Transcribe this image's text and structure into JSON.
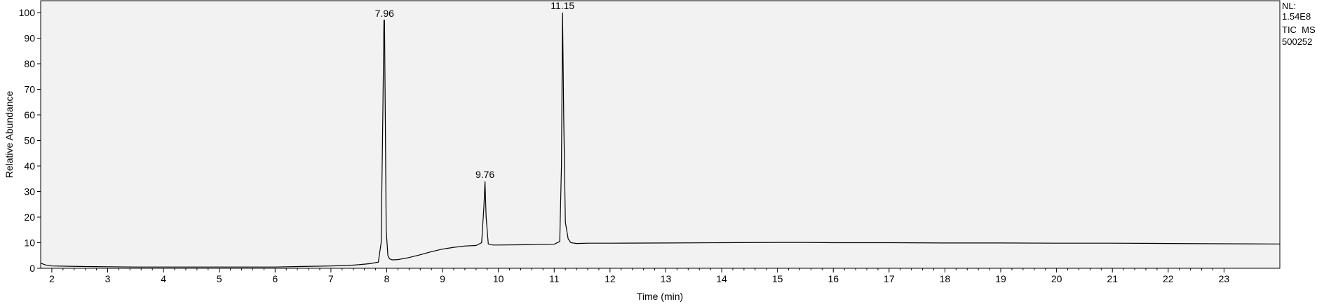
{
  "chart_data": {
    "type": "line",
    "title": "",
    "xlabel": "Time (min)",
    "ylabel": "Relative Abundance",
    "xlim": [
      1.8,
      24.0
    ],
    "ylim": [
      0,
      100
    ],
    "x_ticks": [
      2,
      3,
      4,
      5,
      6,
      7,
      8,
      9,
      10,
      11,
      12,
      13,
      14,
      15,
      16,
      17,
      18,
      19,
      20,
      21,
      22,
      23
    ],
    "y_ticks": [
      0,
      10,
      20,
      30,
      40,
      50,
      60,
      70,
      80,
      90,
      100
    ],
    "series": [
      {
        "name": "TIC",
        "x": [
          1.8,
          1.85,
          1.9,
          2.0,
          2.5,
          3.0,
          3.5,
          4.0,
          4.5,
          5.0,
          5.5,
          6.0,
          6.5,
          7.0,
          7.3,
          7.5,
          7.7,
          7.85,
          7.9,
          7.93,
          7.95,
          7.96,
          7.97,
          7.99,
          8.02,
          8.05,
          8.1,
          8.2,
          8.4,
          8.6,
          8.8,
          9.0,
          9.2,
          9.4,
          9.6,
          9.7,
          9.74,
          9.76,
          9.78,
          9.82,
          9.9,
          10.0,
          10.5,
          11.0,
          11.1,
          11.13,
          11.15,
          11.17,
          11.2,
          11.25,
          11.3,
          11.4,
          11.6,
          12.0,
          13.0,
          14.0,
          15.0,
          15.5,
          16.0,
          17.0,
          18.0,
          19.0,
          20.0,
          21.0,
          22.0,
          23.0,
          24.0
        ],
        "y": [
          2.0,
          1.6,
          1.2,
          0.9,
          0.7,
          0.6,
          0.5,
          0.5,
          0.5,
          0.5,
          0.5,
          0.5,
          0.7,
          0.9,
          1.1,
          1.4,
          1.8,
          2.4,
          10.0,
          60.0,
          97.0,
          97.0,
          70.0,
          15.0,
          5.0,
          3.7,
          3.3,
          3.4,
          4.2,
          5.3,
          6.5,
          7.5,
          8.2,
          8.7,
          8.9,
          10.0,
          24.0,
          34.0,
          20.0,
          9.5,
          9.1,
          9.1,
          9.2,
          9.4,
          10.5,
          40.0,
          100.0,
          60.0,
          18.0,
          11.5,
          10.0,
          9.7,
          9.8,
          9.8,
          9.9,
          10.0,
          10.1,
          10.1,
          10.0,
          10.0,
          9.9,
          9.9,
          9.8,
          9.8,
          9.7,
          9.6,
          9.5
        ]
      }
    ],
    "peak_labels": [
      {
        "x": 7.96,
        "y": 97,
        "text": "7.96"
      },
      {
        "x": 9.76,
        "y": 34,
        "text": "9.76"
      },
      {
        "x": 11.15,
        "y": 100,
        "text": "11.15"
      }
    ],
    "annotations": {
      "nl_label": "NL:",
      "nl_value": "1.54E8",
      "trace_type": "TIC  MS",
      "sample_id": "500252"
    }
  }
}
